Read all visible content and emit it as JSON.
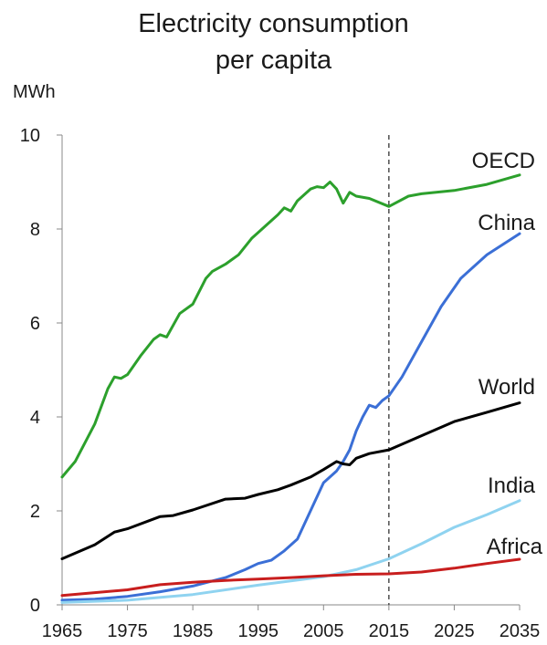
{
  "chart_data": {
    "type": "line",
    "title_line1": "Electricity consumption",
    "title_line2": "per capita",
    "ylabel": "MWh",
    "xlabel": "",
    "xlim": [
      1965,
      2035
    ],
    "ylim": [
      0,
      10
    ],
    "x_ticks": [
      1965,
      1975,
      1985,
      1995,
      2005,
      2015,
      2025,
      2035
    ],
    "y_ticks": [
      0,
      2,
      4,
      6,
      8,
      10
    ],
    "projection_start": 2015,
    "grid": false,
    "series": [
      {
        "name": "OECD",
        "color": "#2ca02c",
        "x": [
          1965,
          1967,
          1970,
          1972,
          1973,
          1974,
          1975,
          1977,
          1979,
          1980,
          1981,
          1983,
          1985,
          1987,
          1988,
          1990,
          1992,
          1994,
          1996,
          1998,
          1999,
          2000,
          2001,
          2003,
          2004,
          2005,
          2006,
          2007,
          2008,
          2009,
          2010,
          2012,
          2015,
          2018,
          2020,
          2025,
          2030,
          2035
        ],
        "y": [
          2.72,
          3.05,
          3.85,
          4.6,
          4.85,
          4.82,
          4.9,
          5.3,
          5.65,
          5.75,
          5.7,
          6.2,
          6.4,
          6.95,
          7.1,
          7.25,
          7.45,
          7.8,
          8.05,
          8.3,
          8.45,
          8.38,
          8.6,
          8.85,
          8.9,
          8.88,
          9.0,
          8.85,
          8.55,
          8.78,
          8.7,
          8.65,
          8.48,
          8.7,
          8.75,
          8.82,
          8.95,
          9.15
        ]
      },
      {
        "name": "China",
        "color": "#3b6fd6",
        "x": [
          1965,
          1970,
          1975,
          1980,
          1985,
          1990,
          1993,
          1995,
          1997,
          1999,
          2001,
          2003,
          2005,
          2007,
          2008,
          2009,
          2010,
          2011,
          2012,
          2013,
          2014,
          2015,
          2017,
          2020,
          2023,
          2026,
          2030,
          2035
        ],
        "y": [
          0.1,
          0.12,
          0.18,
          0.28,
          0.4,
          0.58,
          0.75,
          0.88,
          0.95,
          1.15,
          1.4,
          2.0,
          2.6,
          2.85,
          3.05,
          3.3,
          3.7,
          4.0,
          4.25,
          4.2,
          4.35,
          4.45,
          4.85,
          5.6,
          6.35,
          6.95,
          7.45,
          7.9
        ]
      },
      {
        "name": "World",
        "color": "#000000",
        "x": [
          1965,
          1970,
          1973,
          1975,
          1980,
          1982,
          1985,
          1990,
          1993,
          1995,
          1998,
          2000,
          2003,
          2005,
          2007,
          2008,
          2009,
          2010,
          2012,
          2015,
          2020,
          2025,
          2030,
          2035
        ],
        "y": [
          0.98,
          1.28,
          1.55,
          1.62,
          1.88,
          1.9,
          2.02,
          2.25,
          2.27,
          2.35,
          2.45,
          2.55,
          2.72,
          2.88,
          3.05,
          3.0,
          2.98,
          3.12,
          3.22,
          3.3,
          3.6,
          3.9,
          4.1,
          4.3
        ]
      },
      {
        "name": "India",
        "color": "#8fd3f0",
        "x": [
          1965,
          1975,
          1985,
          1995,
          2005,
          2010,
          2015,
          2020,
          2025,
          2030,
          2035
        ],
        "y": [
          0.05,
          0.1,
          0.22,
          0.42,
          0.6,
          0.75,
          0.98,
          1.3,
          1.65,
          1.92,
          2.22
        ]
      },
      {
        "name": "Africa",
        "color": "#c81e1e",
        "x": [
          1965,
          1975,
          1980,
          1985,
          1990,
          1995,
          2000,
          2005,
          2010,
          2015,
          2020,
          2025,
          2030,
          2035
        ],
        "y": [
          0.2,
          0.32,
          0.43,
          0.48,
          0.52,
          0.55,
          0.58,
          0.62,
          0.65,
          0.66,
          0.7,
          0.78,
          0.88,
          0.97
        ]
      }
    ]
  }
}
